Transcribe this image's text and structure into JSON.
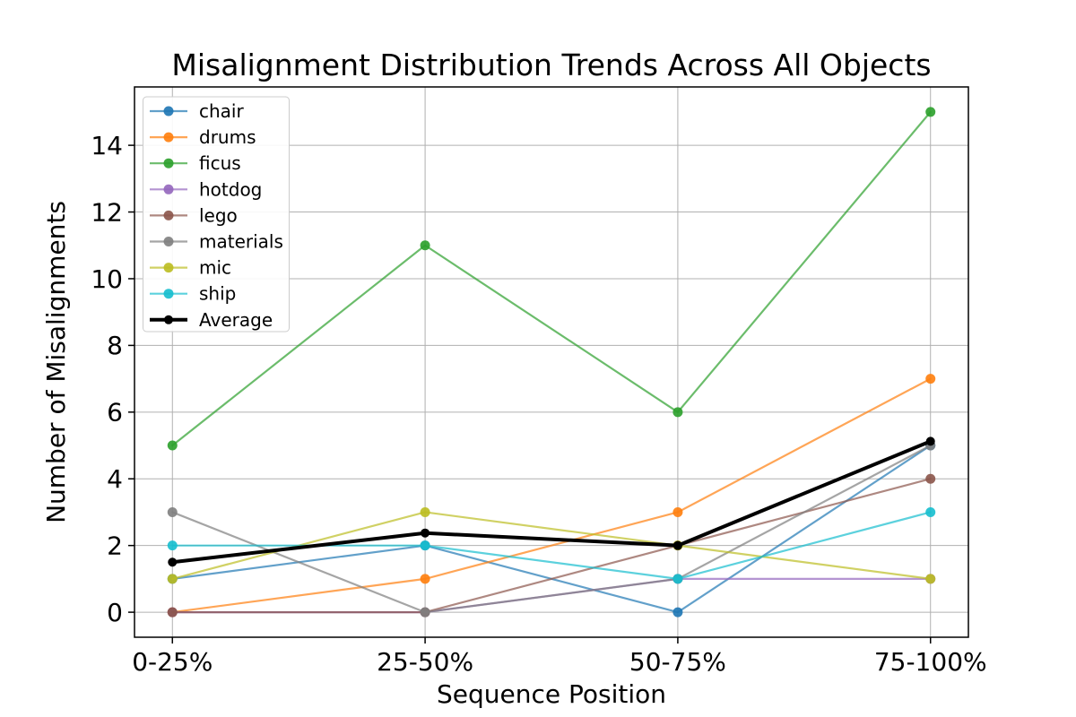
{
  "chart_data": {
    "type": "line",
    "title": "Misalignment Distribution Trends Across All Objects",
    "xlabel": "Sequence Position",
    "ylabel": "Number of Misalignments",
    "categories": [
      "0-25%",
      "25-50%",
      "50-75%",
      "75-100%"
    ],
    "yticks": [
      0,
      2,
      4,
      6,
      8,
      10,
      12,
      14
    ],
    "xlim": [
      -0.15,
      3.15
    ],
    "ylim": [
      -0.75,
      15.75
    ],
    "grid": true,
    "grid_color": "#b0b0b0",
    "axis_color": "#000000",
    "background_color": "#ffffff",
    "legend_position": "upper left",
    "legend_border_color": "#cccccc",
    "series": [
      {
        "name": "chair",
        "color": "#1f77b4",
        "alpha": 0.7,
        "line_width": 2.2,
        "marker": "circle",
        "values": [
          1,
          2,
          0,
          5
        ]
      },
      {
        "name": "drums",
        "color": "#ff7f0e",
        "alpha": 0.7,
        "line_width": 2.2,
        "marker": "circle",
        "values": [
          0,
          1,
          3,
          7
        ]
      },
      {
        "name": "ficus",
        "color": "#2ca02c",
        "alpha": 0.7,
        "line_width": 2.2,
        "marker": "circle",
        "values": [
          5,
          11,
          6,
          15
        ]
      },
      {
        "name": "hotdog",
        "color": "#9467bd",
        "alpha": 0.7,
        "line_width": 2.2,
        "marker": "circle",
        "values": [
          0,
          0,
          1,
          1
        ]
      },
      {
        "name": "lego",
        "color": "#8c564b",
        "alpha": 0.7,
        "line_width": 2.2,
        "marker": "circle",
        "values": [
          0,
          0,
          2,
          4
        ]
      },
      {
        "name": "materials",
        "color": "#7f7f7f",
        "alpha": 0.7,
        "line_width": 2.2,
        "marker": "circle",
        "values": [
          3,
          0,
          1,
          5
        ]
      },
      {
        "name": "mic",
        "color": "#bcbd22",
        "alpha": 0.7,
        "line_width": 2.2,
        "marker": "circle",
        "values": [
          1,
          3,
          2,
          1
        ]
      },
      {
        "name": "ship",
        "color": "#17becf",
        "alpha": 0.7,
        "line_width": 2.2,
        "marker": "circle",
        "values": [
          2,
          2,
          1,
          3
        ]
      },
      {
        "name": "Average",
        "color": "#000000",
        "alpha": 1.0,
        "line_width": 4,
        "marker": "circle",
        "values": [
          1.5,
          2.375,
          2.0,
          5.125
        ]
      }
    ]
  }
}
